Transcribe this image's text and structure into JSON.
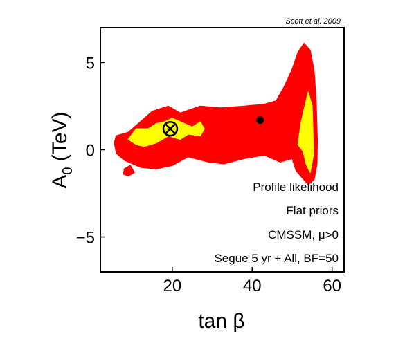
{
  "credit": "Scott et al. 2009",
  "chart_data": {
    "type": "heatmap",
    "xlabel": "tan β",
    "ylabel_main": "A",
    "ylabel_sub": "0",
    "ylabel_rest": " (TeV)",
    "xlim": [
      2,
      63
    ],
    "ylim": [
      -7,
      7
    ],
    "xticks": [
      20,
      40,
      60
    ],
    "xtick_labels": [
      "20",
      "40",
      "60"
    ],
    "yticks": [
      -5,
      0,
      5
    ],
    "ytick_labels": [
      "−5",
      "0",
      "5"
    ],
    "grid": false,
    "colors": {
      "outer_region": "#ff0000",
      "inner_region": "#ffff00",
      "edge": "#000000"
    },
    "regions": [
      {
        "level": "outer",
        "polygon": [
          [
            5.5,
            0.4
          ],
          [
            6,
            0.8
          ],
          [
            9,
            1.0
          ],
          [
            12,
            1.6
          ],
          [
            15,
            2.2
          ],
          [
            19,
            2.5
          ],
          [
            22,
            2.1
          ],
          [
            27,
            2.5
          ],
          [
            32,
            2.4
          ],
          [
            38,
            2.5
          ],
          [
            43,
            2.6
          ],
          [
            46,
            2.8
          ],
          [
            48,
            3.6
          ],
          [
            50,
            4.6
          ],
          [
            51.5,
            5.6
          ],
          [
            53,
            6.1
          ],
          [
            54.5,
            5.7
          ],
          [
            55.5,
            4.5
          ],
          [
            56,
            2.8
          ],
          [
            56.3,
            0.5
          ],
          [
            56.2,
            -0.8
          ],
          [
            55.5,
            -1.7
          ],
          [
            54,
            -2.0
          ],
          [
            51,
            -1.2
          ],
          [
            50,
            -0.5
          ],
          [
            47,
            -0.7
          ],
          [
            43,
            -0.3
          ],
          [
            38,
            -0.5
          ],
          [
            33,
            -0.8
          ],
          [
            29,
            -0.7
          ],
          [
            24,
            -0.4
          ],
          [
            20,
            -0.9
          ],
          [
            16,
            -1.1
          ],
          [
            12,
            -1.0
          ],
          [
            8,
            -0.6
          ],
          [
            6,
            -0.2
          ]
        ]
      },
      {
        "level": "outer",
        "polygon": [
          [
            8,
            -1.1
          ],
          [
            9.5,
            -0.9
          ],
          [
            10.5,
            -1.3
          ],
          [
            9,
            -1.5
          ],
          [
            7.8,
            -1.4
          ]
        ]
      },
      {
        "level": "inner",
        "polygon": [
          [
            9,
            0.6
          ],
          [
            11,
            1.2
          ],
          [
            14,
            1.2
          ],
          [
            16,
            1.5
          ],
          [
            18,
            1.6
          ],
          [
            20,
            1.8
          ],
          [
            22,
            1.6
          ],
          [
            25,
            1.3
          ],
          [
            27,
            1.6
          ],
          [
            28,
            1.2
          ],
          [
            27,
            0.8
          ],
          [
            24,
            0.9
          ],
          [
            22,
            0.6
          ],
          [
            19,
            0.8
          ],
          [
            16,
            0.4
          ],
          [
            13,
            0.2
          ],
          [
            11,
            0.3
          ]
        ]
      },
      {
        "level": "inner",
        "polygon": [
          [
            51.5,
            0.3
          ],
          [
            52.2,
            1.5
          ],
          [
            53.2,
            2.5
          ],
          [
            54,
            3.3
          ],
          [
            55,
            2.5
          ],
          [
            55.2,
            1.0
          ],
          [
            55.3,
            -0.3
          ],
          [
            54.5,
            -1.3
          ],
          [
            53.5,
            -0.8
          ],
          [
            52.8,
            -0.1
          ]
        ]
      }
    ],
    "points": [
      {
        "marker": "circled-x",
        "x": 19.5,
        "y": 1.2
      },
      {
        "marker": "filled-circle",
        "x": 42,
        "y": 1.7
      }
    ],
    "annotations": [
      "Profile likelihood",
      "Flat priors",
      "CMSSM, μ>0",
      "Segue 5 yr + All, BF=50"
    ]
  }
}
